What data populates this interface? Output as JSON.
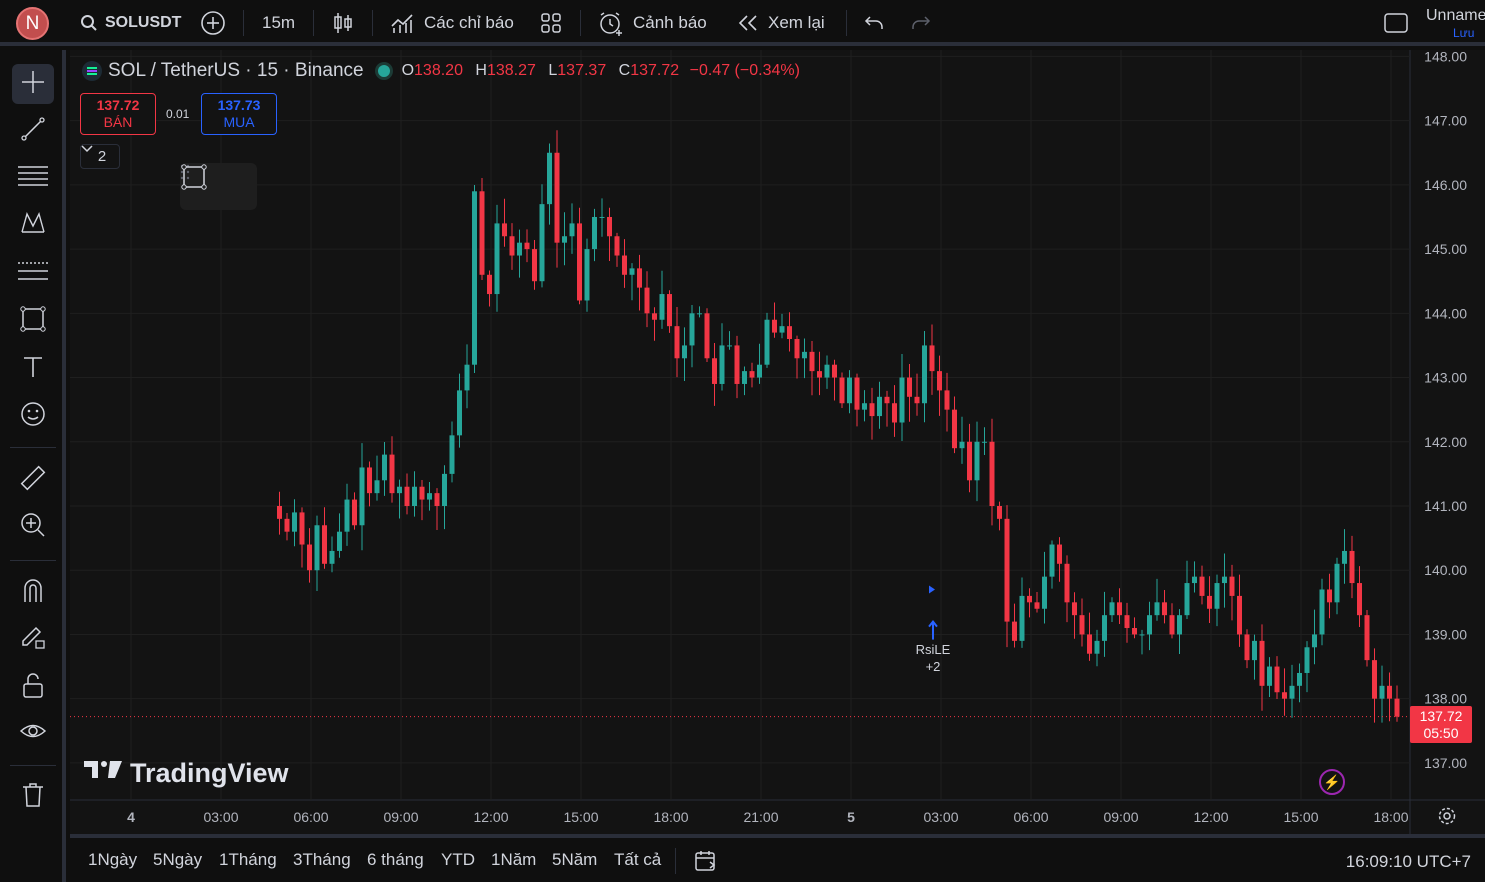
{
  "topbar": {
    "avatar_letter": "N",
    "symbol": "SOLUSDT",
    "interval": "15m",
    "indicators_label": "Các chỉ báo",
    "alerts_label": "Cảnh báo",
    "replay_label": "Xem lại",
    "layout_name": "Unnamed",
    "save_label": "Lưu"
  },
  "legend": {
    "title": "SOL / TetherUS · 15 · Binance",
    "o_key": "O",
    "o_val": "138.20",
    "h_key": "H",
    "h_val": "138.27",
    "l_key": "L",
    "l_val": "137.37",
    "c_key": "C",
    "c_val": "137.72",
    "change": "−0.47 (−0.34%)"
  },
  "trade": {
    "sell_price": "137.72",
    "sell_label": "BÁN",
    "spread": "0.01",
    "buy_price": "137.73",
    "buy_label": "MUA",
    "collapse_count": "2"
  },
  "watermark": "TradingView",
  "signal": {
    "name": "RsiLE",
    "extra": "+2"
  },
  "last_price": {
    "price": "137.72",
    "countdown": "05:50"
  },
  "bottombar": {
    "ranges": [
      "1Ngày",
      "5Ngày",
      "1Tháng",
      "3Tháng",
      "6 tháng",
      "YTD",
      "1Năm",
      "5Năm",
      "Tất cả"
    ],
    "clock": "16:09:10 UTC+7"
  },
  "colors": {
    "up": "#26a69a",
    "down": "#f23645",
    "accent": "#2962ff",
    "background": "#131313"
  },
  "chart_data": {
    "type": "candlestick",
    "y_ticks": [
      "148.00",
      "147.00",
      "146.00",
      "145.00",
      "144.00",
      "143.00",
      "142.00",
      "141.00",
      "140.00",
      "139.00",
      "138.00",
      "137.00"
    ],
    "x_ticks": [
      "4",
      "03:00",
      "06:00",
      "09:00",
      "12:00",
      "15:00",
      "18:00",
      "21:00",
      "5",
      "03:00",
      "06:00",
      "09:00",
      "12:00",
      "15:00",
      "18:00"
    ],
    "ylim": [
      136.5,
      148.1
    ],
    "last_price": 137.72,
    "grid": true,
    "closes": [
      140.8,
      140.6,
      140.9,
      140.4,
      140.0,
      140.7,
      140.1,
      140.3,
      140.6,
      141.1,
      140.7,
      141.6,
      141.2,
      141.4,
      141.8,
      141.2,
      141.3,
      141.0,
      141.3,
      141.1,
      141.2,
      141.0,
      141.5,
      142.1,
      142.8,
      143.2,
      145.9,
      144.6,
      144.3,
      145.4,
      145.2,
      144.9,
      145.1,
      145.0,
      144.5,
      145.7,
      146.5,
      145.1,
      145.2,
      145.4,
      144.2,
      145.0,
      145.5,
      145.5,
      145.2,
      144.9,
      144.6,
      144.7,
      144.4,
      144.0,
      143.9,
      144.3,
      143.8,
      143.3,
      143.5,
      144.0,
      144.0,
      143.3,
      142.9,
      143.5,
      143.5,
      142.9,
      143.1,
      143.0,
      143.2,
      143.9,
      143.7,
      143.8,
      143.6,
      143.3,
      143.4,
      143.1,
      143.0,
      143.2,
      143.0,
      142.6,
      143.0,
      142.5,
      142.6,
      142.4,
      142.7,
      142.6,
      142.3,
      143.0,
      142.7,
      142.6,
      143.5,
      143.1,
      142.8,
      142.5,
      141.9,
      142.0,
      141.4,
      142.0,
      142.0,
      141.0,
      140.8,
      139.2,
      138.9,
      139.6,
      139.5,
      139.4,
      139.9,
      140.4,
      140.1,
      139.5,
      139.3,
      139.0,
      138.7,
      138.9,
      139.3,
      139.5,
      139.3,
      139.1,
      139.0,
      139.0,
      139.3,
      139.5,
      139.3,
      139.0,
      139.3,
      139.8,
      139.9,
      139.6,
      139.4,
      139.8,
      139.9,
      139.6,
      139.0,
      138.6,
      138.9,
      138.2,
      138.5,
      138.1,
      138.0,
      138.2,
      138.4,
      138.8,
      139.0,
      139.7,
      139.5,
      140.1,
      140.3,
      139.8,
      139.3,
      138.6,
      138.0,
      138.2,
      138.0,
      137.72
    ]
  }
}
